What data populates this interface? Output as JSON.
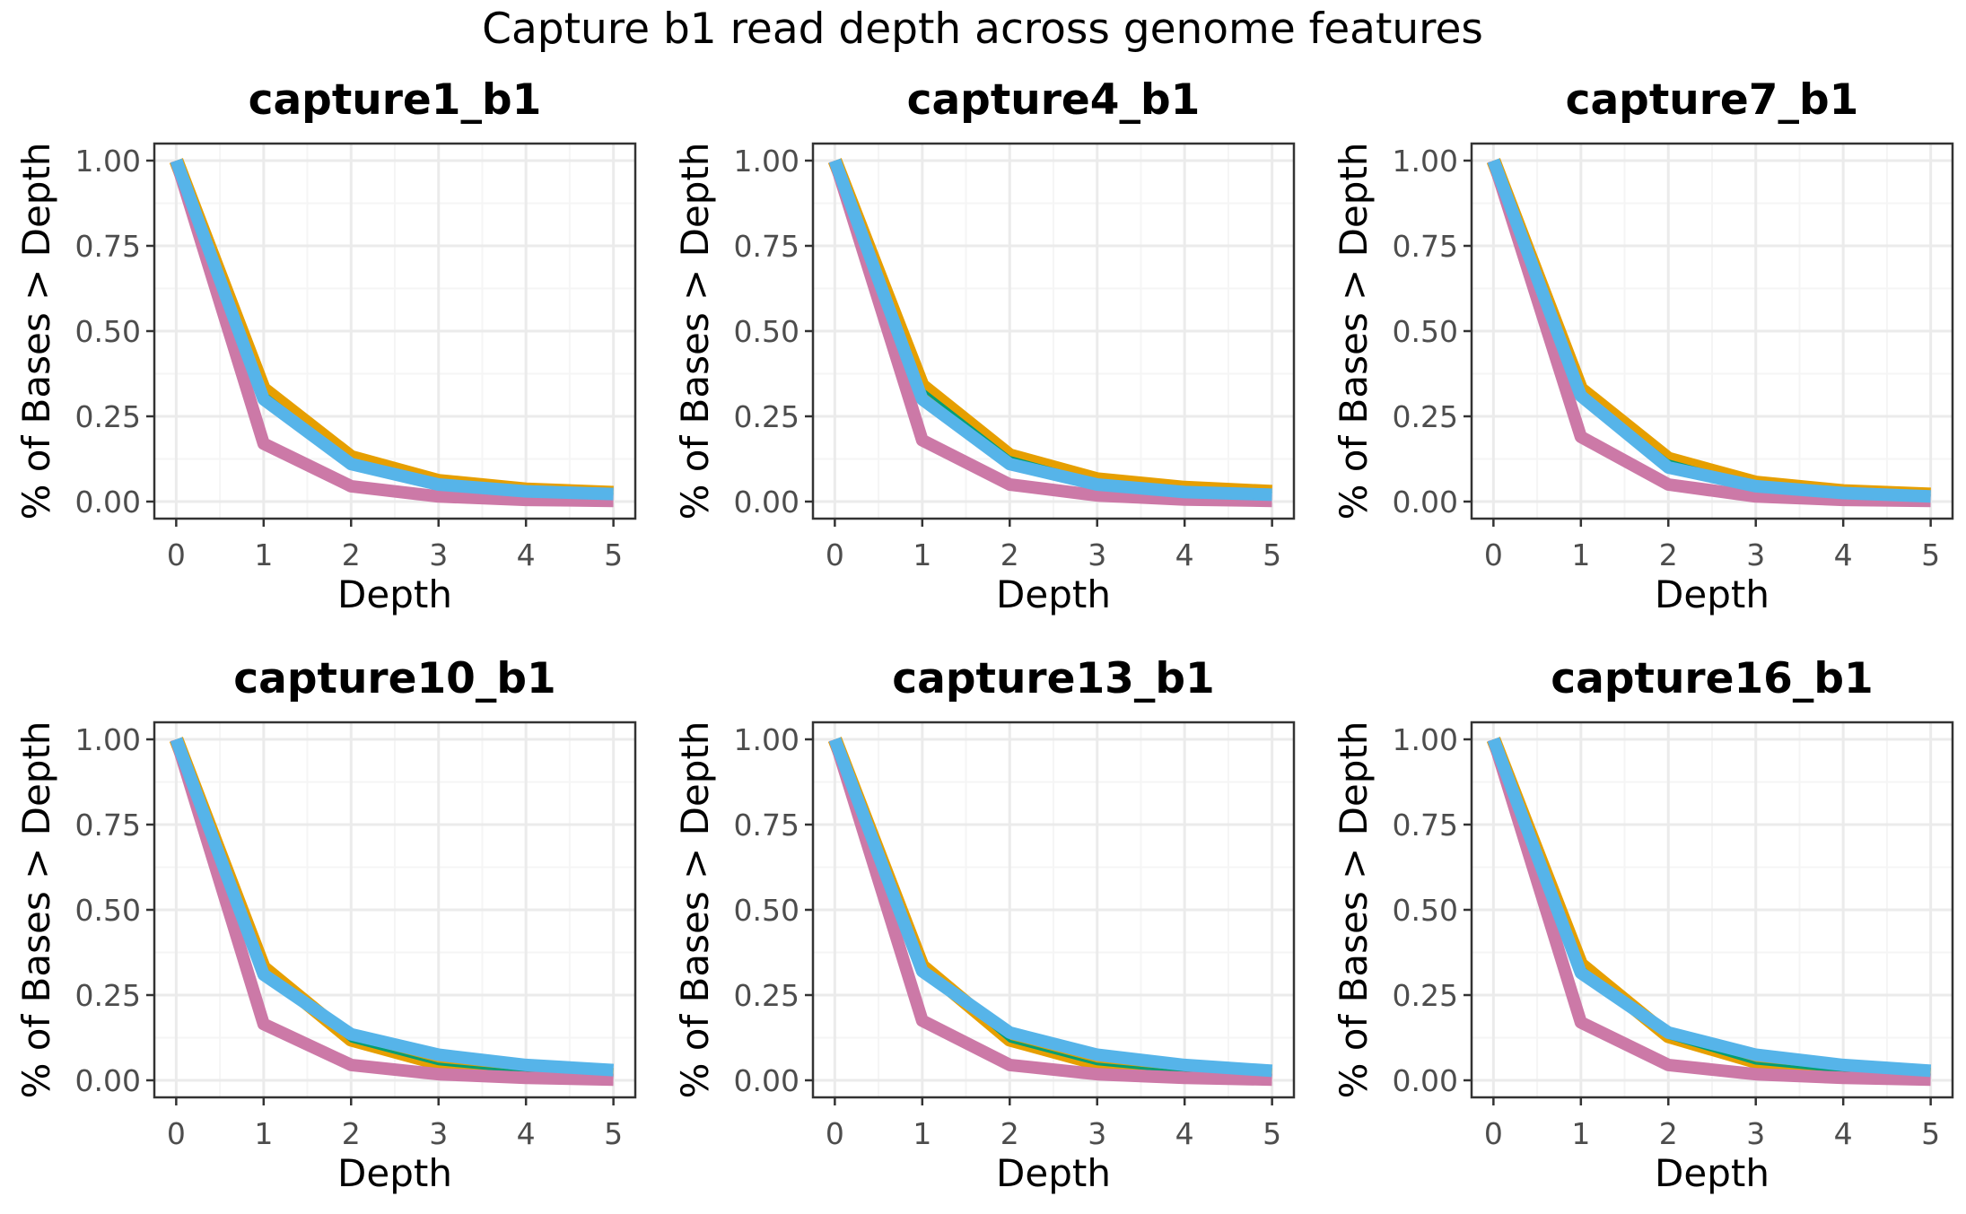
{
  "figure": {
    "title": "Capture b1 read depth across genome features"
  },
  "colors": {
    "series_1": "#E69F00",
    "series_2": "#009E73",
    "series_3": "#CC79A7",
    "series_4": "#56B4E9",
    "grid_major": "#ebebeb",
    "grid_minor": "#f5f5f5",
    "panel_border": "#333333"
  },
  "chart_data": [
    {
      "type": "line",
      "title": "capture1_b1",
      "xlabel": "Depth",
      "ylabel": "% of Bases > Depth",
      "x": [
        0,
        1,
        2,
        3,
        4,
        5
      ],
      "xlim": [
        -0.25,
        5.25
      ],
      "ylim": [
        -0.05,
        1.05
      ],
      "xticks": [
        "0",
        "1",
        "2",
        "3",
        "4",
        "5"
      ],
      "yticks": [
        "0.00",
        "0.25",
        "0.50",
        "0.75",
        "1.00"
      ],
      "grid": true,
      "legend": "none",
      "series": [
        {
          "values": [
            1.0,
            0.33,
            0.13,
            0.06,
            0.035,
            0.025
          ],
          "color": "#E69F00"
        },
        {
          "values": [
            1.0,
            0.32,
            0.12,
            0.055,
            0.03,
            0.022
          ],
          "color": "#009E73"
        },
        {
          "values": [
            1.0,
            0.17,
            0.045,
            0.015,
            0.005,
            0.002
          ],
          "color": "#CC79A7"
        },
        {
          "values": [
            1.0,
            0.3,
            0.11,
            0.05,
            0.03,
            0.022
          ],
          "color": "#56B4E9"
        }
      ]
    },
    {
      "type": "line",
      "title": "capture4_b1",
      "xlabel": "Depth",
      "ylabel": "% of Bases > Depth",
      "x": [
        0,
        1,
        2,
        3,
        4,
        5
      ],
      "xlim": [
        -0.25,
        5.25
      ],
      "ylim": [
        -0.05,
        1.05
      ],
      "xticks": [
        "0",
        "1",
        "2",
        "3",
        "4",
        "5"
      ],
      "yticks": [
        "0.00",
        "0.25",
        "0.50",
        "0.75",
        "1.00"
      ],
      "grid": true,
      "legend": "none",
      "series": [
        {
          "values": [
            1.0,
            0.34,
            0.135,
            0.065,
            0.04,
            0.028
          ],
          "color": "#E69F00"
        },
        {
          "values": [
            1.0,
            0.33,
            0.13,
            0.06,
            0.035,
            0.025
          ],
          "color": "#009E73"
        },
        {
          "values": [
            1.0,
            0.18,
            0.05,
            0.018,
            0.006,
            0.002
          ],
          "color": "#CC79A7"
        },
        {
          "values": [
            1.0,
            0.3,
            0.11,
            0.05,
            0.028,
            0.02
          ],
          "color": "#56B4E9"
        }
      ]
    },
    {
      "type": "line",
      "title": "capture7_b1",
      "xlabel": "Depth",
      "ylabel": "% of Bases > Depth",
      "x": [
        0,
        1,
        2,
        3,
        4,
        5
      ],
      "xlim": [
        -0.25,
        5.25
      ],
      "ylim": [
        -0.05,
        1.05
      ],
      "xticks": [
        "0",
        "1",
        "2",
        "3",
        "4",
        "5"
      ],
      "yticks": [
        "0.00",
        "0.25",
        "0.50",
        "0.75",
        "1.00"
      ],
      "grid": true,
      "legend": "none",
      "series": [
        {
          "values": [
            1.0,
            0.33,
            0.125,
            0.055,
            0.03,
            0.02
          ],
          "color": "#E69F00"
        },
        {
          "values": [
            1.0,
            0.32,
            0.12,
            0.05,
            0.028,
            0.018
          ],
          "color": "#009E73"
        },
        {
          "values": [
            1.0,
            0.19,
            0.05,
            0.015,
            0.005,
            0.002
          ],
          "color": "#CC79A7"
        },
        {
          "values": [
            1.0,
            0.31,
            0.1,
            0.045,
            0.025,
            0.015
          ],
          "color": "#56B4E9"
        }
      ]
    },
    {
      "type": "line",
      "title": "capture10_b1",
      "xlabel": "Depth",
      "ylabel": "% of Bases > Depth",
      "x": [
        0,
        1,
        2,
        3,
        4,
        5
      ],
      "xlim": [
        -0.25,
        5.25
      ],
      "ylim": [
        -0.05,
        1.05
      ],
      "xticks": [
        "0",
        "1",
        "2",
        "3",
        "4",
        "5"
      ],
      "yticks": [
        "0.00",
        "0.25",
        "0.50",
        "0.75",
        "1.00"
      ],
      "grid": true,
      "legend": "none",
      "series": [
        {
          "values": [
            1.0,
            0.33,
            0.12,
            0.05,
            0.025,
            0.015
          ],
          "color": "#E69F00"
        },
        {
          "values": [
            1.0,
            0.325,
            0.115,
            0.048,
            0.024,
            0.014
          ],
          "color": "#009E73"
        },
        {
          "values": [
            1.0,
            0.165,
            0.045,
            0.018,
            0.007,
            0.002
          ],
          "color": "#CC79A7"
        },
        {
          "values": [
            1.0,
            0.31,
            0.135,
            0.075,
            0.045,
            0.03
          ],
          "color": "#56B4E9"
        }
      ]
    },
    {
      "type": "line",
      "title": "capture13_b1",
      "xlabel": "Depth",
      "ylabel": "% of Bases > Depth",
      "x": [
        0,
        1,
        2,
        3,
        4,
        5
      ],
      "xlim": [
        -0.25,
        5.25
      ],
      "ylim": [
        -0.05,
        1.05
      ],
      "xticks": [
        "0",
        "1",
        "2",
        "3",
        "4",
        "5"
      ],
      "yticks": [
        "0.00",
        "0.25",
        "0.50",
        "0.75",
        "1.00"
      ],
      "grid": true,
      "legend": "none",
      "series": [
        {
          "values": [
            1.0,
            0.335,
            0.12,
            0.05,
            0.025,
            0.015
          ],
          "color": "#E69F00"
        },
        {
          "values": [
            1.0,
            0.33,
            0.115,
            0.048,
            0.024,
            0.014
          ],
          "color": "#009E73"
        },
        {
          "values": [
            1.0,
            0.175,
            0.045,
            0.018,
            0.007,
            0.002
          ],
          "color": "#CC79A7"
        },
        {
          "values": [
            1.0,
            0.32,
            0.14,
            0.075,
            0.045,
            0.028
          ],
          "color": "#56B4E9"
        }
      ]
    },
    {
      "type": "line",
      "title": "capture16_b1",
      "xlabel": "Depth",
      "ylabel": "% of Bases > Depth",
      "x": [
        0,
        1,
        2,
        3,
        4,
        5
      ],
      "xlim": [
        -0.25,
        5.25
      ],
      "ylim": [
        -0.05,
        1.05
      ],
      "xticks": [
        "0",
        "1",
        "2",
        "3",
        "4",
        "5"
      ],
      "yticks": [
        "0.00",
        "0.25",
        "0.50",
        "0.75",
        "1.00"
      ],
      "grid": true,
      "legend": "none",
      "series": [
        {
          "values": [
            1.0,
            0.34,
            0.13,
            0.055,
            0.028,
            0.016
          ],
          "color": "#E69F00"
        },
        {
          "values": [
            1.0,
            0.335,
            0.125,
            0.05,
            0.026,
            0.015
          ],
          "color": "#009E73"
        },
        {
          "values": [
            1.0,
            0.17,
            0.045,
            0.018,
            0.007,
            0.002
          ],
          "color": "#CC79A7"
        },
        {
          "values": [
            1.0,
            0.315,
            0.14,
            0.075,
            0.045,
            0.028
          ],
          "color": "#56B4E9"
        }
      ]
    }
  ]
}
